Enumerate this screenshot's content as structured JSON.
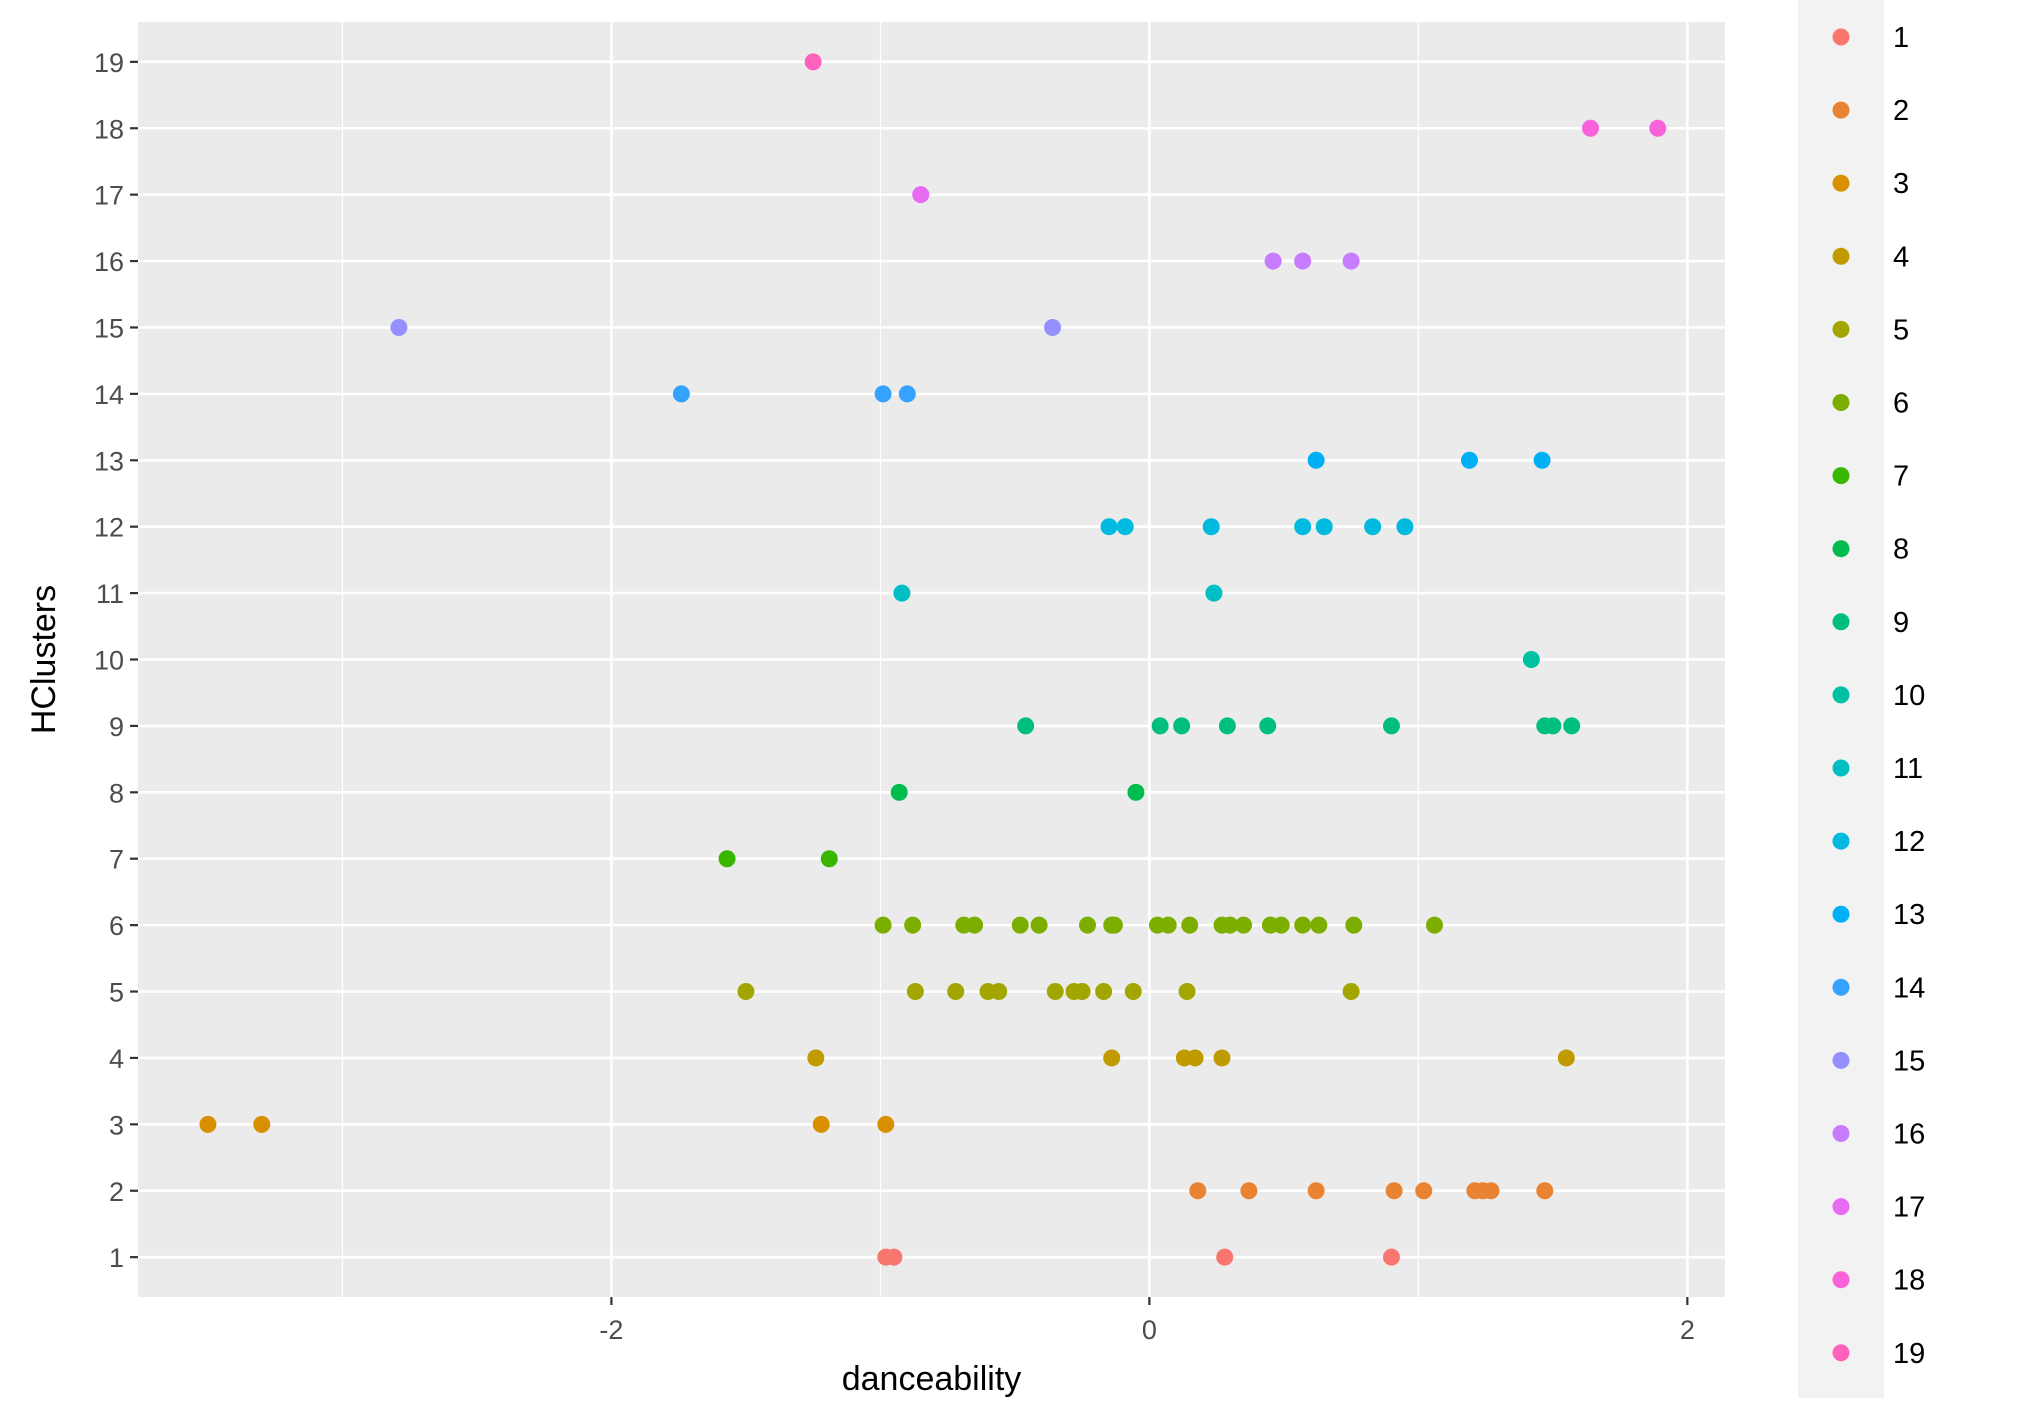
{
  "chart_data": {
    "type": "scatter",
    "xlabel": "danceability",
    "ylabel": "HClusters",
    "x_ticks": [
      -2,
      0,
      2
    ],
    "x_tick_labels": [
      "-2",
      "0",
      "2"
    ],
    "xlim": [
      -3.76,
      2.14
    ],
    "ylim": [
      0.4,
      19.6
    ],
    "y_ticks": [
      1,
      2,
      3,
      4,
      5,
      6,
      7,
      8,
      9,
      10,
      11,
      12,
      13,
      14,
      15,
      16,
      17,
      18,
      19
    ],
    "y_tick_labels": [
      "1",
      "2",
      "3",
      "4",
      "5",
      "6",
      "7",
      "8",
      "9",
      "10",
      "11",
      "12",
      "13",
      "14",
      "15",
      "16",
      "17",
      "18",
      "19"
    ],
    "grid": true,
    "legend_position": "right",
    "legend_entries": [
      "1",
      "2",
      "3",
      "4",
      "5",
      "6",
      "7",
      "8",
      "9",
      "10",
      "11",
      "12",
      "13",
      "14",
      "15",
      "16",
      "17",
      "18",
      "19"
    ],
    "colors": [
      "#F8766D",
      "#EA8331",
      "#D89000",
      "#C09B00",
      "#A3A500",
      "#7CAE00",
      "#39B600",
      "#00BB4E",
      "#00BF7D",
      "#00C1A3",
      "#00BFC4",
      "#00BAE0",
      "#00B0F6",
      "#35A2FF",
      "#9590FF",
      "#C77CFF",
      "#E76BF3",
      "#FA62DB",
      "#FF62BC"
    ],
    "series": [
      {
        "name": "1",
        "x": [
          -0.98,
          -0.95,
          0.28,
          0.9
        ],
        "y": [
          1,
          1,
          1,
          1
        ]
      },
      {
        "name": "2",
        "x": [
          0.18,
          0.37,
          0.62,
          0.91,
          1.02,
          1.21,
          1.24,
          1.27,
          1.47
        ],
        "y": [
          2,
          2,
          2,
          2,
          2,
          2,
          2,
          2,
          2
        ]
      },
      {
        "name": "3",
        "x": [
          -3.5,
          -3.3,
          -1.22,
          -0.98
        ],
        "y": [
          3,
          3,
          3,
          3
        ]
      },
      {
        "name": "4",
        "x": [
          -1.24,
          -0.14,
          0.13,
          0.17,
          0.27,
          1.55
        ],
        "y": [
          4,
          4,
          4,
          4,
          4,
          4
        ]
      },
      {
        "name": "5",
        "x": [
          -1.5,
          -0.87,
          -0.72,
          -0.6,
          -0.56,
          -0.35,
          -0.28,
          -0.25,
          -0.17,
          -0.06,
          0.14,
          0.75
        ],
        "y": [
          5,
          5,
          5,
          5,
          5,
          5,
          5,
          5,
          5,
          5,
          5,
          5
        ]
      },
      {
        "name": "6",
        "x": [
          -0.99,
          -0.88,
          -0.69,
          -0.65,
          -0.48,
          -0.41,
          -0.23,
          -0.14,
          -0.13,
          0.03,
          0.07,
          0.15,
          0.27,
          0.3,
          0.35,
          0.45,
          0.49,
          0.57,
          0.63,
          0.76,
          1.06
        ],
        "y": [
          6,
          6,
          6,
          6,
          6,
          6,
          6,
          6,
          6,
          6,
          6,
          6,
          6,
          6,
          6,
          6,
          6,
          6,
          6,
          6,
          6
        ]
      },
      {
        "name": "7",
        "x": [
          -1.57,
          -1.19
        ],
        "y": [
          7,
          7
        ]
      },
      {
        "name": "8",
        "x": [
          -0.93,
          -0.05
        ],
        "y": [
          8,
          8
        ]
      },
      {
        "name": "9",
        "x": [
          -0.46,
          0.04,
          0.12,
          0.29,
          0.44,
          0.9,
          1.47,
          1.5,
          1.57
        ],
        "y": [
          9,
          9,
          9,
          9,
          9,
          9,
          9,
          9,
          9
        ]
      },
      {
        "name": "10",
        "x": [
          1.42
        ],
        "y": [
          10
        ]
      },
      {
        "name": "11",
        "x": [
          -0.92,
          0.24
        ],
        "y": [
          11,
          11
        ]
      },
      {
        "name": "12",
        "x": [
          -0.15,
          -0.09,
          0.23,
          0.57,
          0.65,
          0.83,
          0.95
        ],
        "y": [
          12,
          12,
          12,
          12,
          12,
          12,
          12
        ]
      },
      {
        "name": "13",
        "x": [
          0.62,
          1.19,
          1.46
        ],
        "y": [
          13,
          13,
          13
        ]
      },
      {
        "name": "14",
        "x": [
          -1.74,
          -0.99,
          -0.9
        ],
        "y": [
          14,
          14,
          14
        ]
      },
      {
        "name": "15",
        "x": [
          -2.79,
          -0.36
        ],
        "y": [
          15,
          15
        ]
      },
      {
        "name": "16",
        "x": [
          0.46,
          0.57,
          0.75
        ],
        "y": [
          16,
          16,
          16
        ]
      },
      {
        "name": "17",
        "x": [
          -0.85
        ],
        "y": [
          17
        ]
      },
      {
        "name": "18",
        "x": [
          1.64,
          1.89
        ],
        "y": [
          18,
          18
        ]
      },
      {
        "name": "19",
        "x": [
          -1.25
        ],
        "y": [
          19
        ]
      }
    ]
  }
}
